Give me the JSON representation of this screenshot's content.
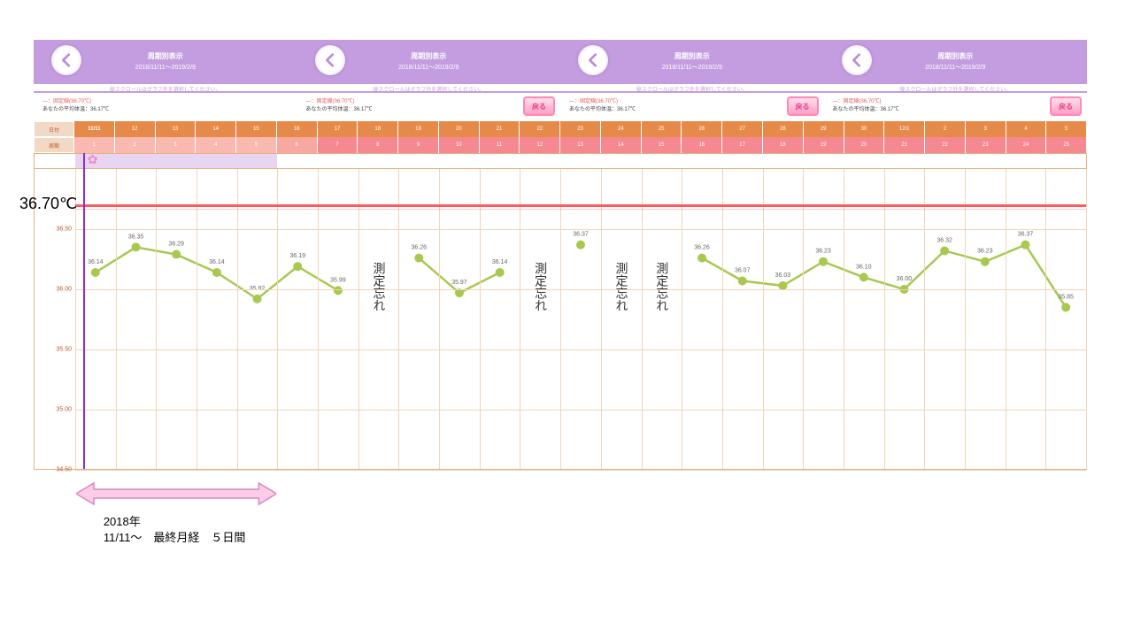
{
  "header": {
    "title": "周期別表示",
    "date_range": "2018/11/11～2019/2/9",
    "back_arrow_color": "#b98ddb",
    "bg_color": "#c49de0",
    "segments": 4
  },
  "scroll_notice": "縦スクロールはグラフ外を選択してください。",
  "legend": {
    "fixed_line": "―：固定線(36.70℃)",
    "avg_temp": "あなたの平均体温：36.17℃",
    "modoru": "戻る"
  },
  "date_row": {
    "label": "日付",
    "bg_color": "#e68a4a",
    "first_cell": "11/11",
    "cells": [
      "11/11",
      "12",
      "13",
      "14",
      "15",
      "16",
      "17",
      "18",
      "19",
      "20",
      "21",
      "22",
      "23",
      "24",
      "25",
      "26",
      "27",
      "28",
      "29",
      "30",
      "12/1",
      "2",
      "3",
      "4",
      "5"
    ]
  },
  "cycle_row": {
    "label": "周期",
    "cells": [
      "1",
      "2",
      "3",
      "4",
      "5",
      "6",
      "7",
      "8",
      "9",
      "10",
      "11",
      "12",
      "13",
      "14",
      "15",
      "16",
      "17",
      "18",
      "19",
      "20",
      "21",
      "22",
      "23",
      "24",
      "25"
    ],
    "light_cells": 5,
    "mid_cell": 1,
    "light_bg": "#f9b8b0",
    "mid_bg": "#f8a8a0",
    "dark_bg": "#f58890"
  },
  "icon_row": {
    "purple_bar_cols": 5,
    "flower_col": 0
  },
  "chart": {
    "type": "line",
    "n_cols": 25,
    "ylim": [
      34.5,
      37.0
    ],
    "yticks": [
      34.5,
      35.0,
      35.5,
      36.0,
      36.5
    ],
    "ytick_labels": [
      "34.50",
      "35.00",
      "35.50",
      "36.00",
      "36.50"
    ],
    "fixed_line_value": 36.7,
    "fixed_line_color": "#ff5a5a",
    "purple_vline_col": 0,
    "grid_color": "#f0d5b8",
    "line_color": "#a8c850",
    "marker_color": "#a8c850",
    "marker_size": 5,
    "data": [
      {
        "col": 0,
        "val": 36.14,
        "label": "36.14"
      },
      {
        "col": 1,
        "val": 36.35,
        "label": "36.35"
      },
      {
        "col": 2,
        "val": 36.29,
        "label": "36.29"
      },
      {
        "col": 3,
        "val": 36.14,
        "label": "36.14"
      },
      {
        "col": 4,
        "val": 35.92,
        "label": "35.92"
      },
      {
        "col": 5,
        "val": 36.19,
        "label": "36.19"
      },
      {
        "col": 6,
        "val": 35.99,
        "label": "35.99"
      },
      {
        "col": 7,
        "val": null
      },
      {
        "col": 8,
        "val": 36.26,
        "label": "36.26"
      },
      {
        "col": 9,
        "val": 35.97,
        "label": "35.97"
      },
      {
        "col": 10,
        "val": 36.14,
        "label": "36.14"
      },
      {
        "col": 11,
        "val": null
      },
      {
        "col": 12,
        "val": 36.37,
        "label": "36.37"
      },
      {
        "col": 13,
        "val": null
      },
      {
        "col": 14,
        "val": null
      },
      {
        "col": 15,
        "val": 36.26,
        "label": "36.26"
      },
      {
        "col": 16,
        "val": 36.07,
        "label": "36.07"
      },
      {
        "col": 17,
        "val": 36.03,
        "label": "36.03"
      },
      {
        "col": 18,
        "val": 36.23,
        "label": "36.23"
      },
      {
        "col": 19,
        "val": 36.1,
        "label": "36.10"
      },
      {
        "col": 20,
        "val": 36.0,
        "label": "36.00"
      },
      {
        "col": 21,
        "val": 36.32,
        "label": "36.32"
      },
      {
        "col": 22,
        "val": 36.23,
        "label": "36.23"
      },
      {
        "col": 23,
        "val": 36.37,
        "label": "36.37"
      },
      {
        "col": 24,
        "val": 35.85,
        "label": "35.85"
      }
    ],
    "forgot_label": "測定忘れ",
    "forgot_cols": [
      7,
      11,
      13,
      14
    ]
  },
  "annotations": {
    "big_temp": "36.70℃",
    "big_arrow": {
      "start_col": 0,
      "end_col": 5,
      "color_fill": "#fccde8",
      "color_stroke": "#d988c0"
    },
    "bottom_line1": "2018年",
    "bottom_line2": "11/11～　最終月経　５日間"
  }
}
